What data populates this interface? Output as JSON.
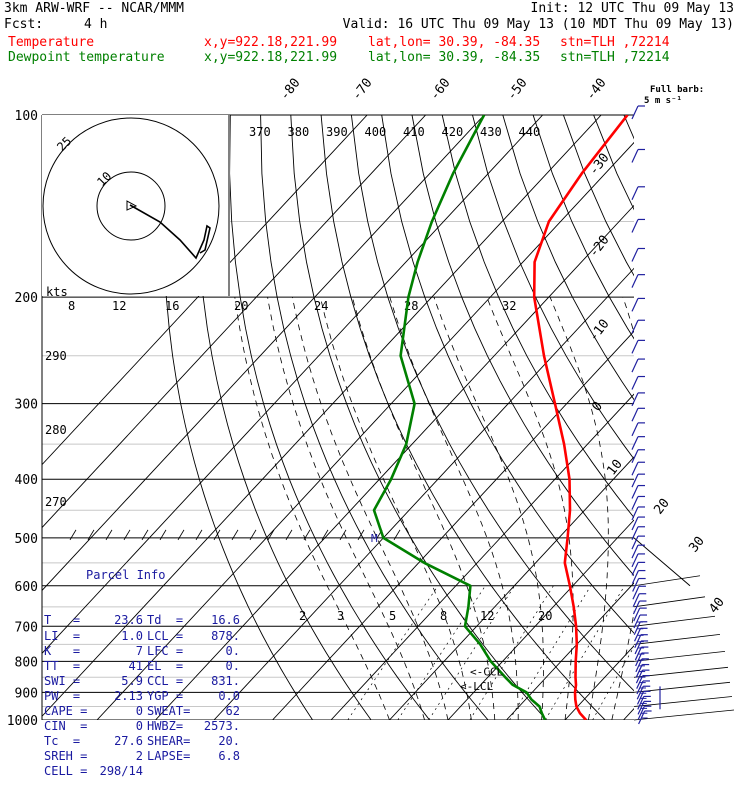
{
  "header": {
    "model": "3km ARW-WRF -- NCAR/MMM",
    "init": "Init: 12 UTC Thu 09 May 13",
    "fcst_label": "Fcst:",
    "fcst_value": "4 h",
    "valid": "Valid: 16 UTC Thu 09 May 13 (10 MDT Thu 09 May 13)",
    "temp_label": "Temperature",
    "dewp_label": "Dewpoint temperature",
    "xy": "x,y=922.18,221.99",
    "latlon": "lat,lon= 30.39, -84.35",
    "stn": "stn=TLH ,72214"
  },
  "colors": {
    "temperature": "#ff0000",
    "dewpoint": "#008000",
    "barbs": "#2020a0",
    "grid": "#000000"
  },
  "barb_legend": {
    "line1": "Full barb:",
    "line2": "5 m s⁻¹"
  },
  "parcel": {
    "title": "Parcel Info",
    "rows": [
      {
        "k1": "T   =",
        "v1": "23.6",
        "k2": "Td  =",
        "v2": "16.6"
      },
      {
        "k1": "LI  =",
        "v1": "1.0",
        "k2": "LCL =",
        "v2": "878."
      },
      {
        "k1": "K   =",
        "v1": "7",
        "k2": "LFC =",
        "v2": "0."
      },
      {
        "k1": "TT  =",
        "v1": "41",
        "k2": "EL  =",
        "v2": "0."
      },
      {
        "k1": "SWI =",
        "v1": "5.9",
        "k2": "CCL =",
        "v2": "831."
      },
      {
        "k1": "PW  =",
        "v1": "2.13",
        "k2": "YGP =",
        "v2": "0.0"
      },
      {
        "k1": "CAPE =",
        "v1": "0",
        "k2": "SWEAT=",
        "v2": "62"
      },
      {
        "k1": "CIN  =",
        "v1": "0",
        "k2": "HWBZ=",
        "v2": "2573."
      },
      {
        "k1": "Tc  =",
        "v1": "27.6",
        "k2": "SHEAR=",
        "v2": "20."
      },
      {
        "k1": "SREH =",
        "v1": "2",
        "k2": "LAPSE=",
        "v2": "6.8"
      },
      {
        "k1": "CELL =",
        "v1": "298/14",
        "k2": "",
        "v2": ""
      }
    ]
  },
  "chart_data": {
    "type": "line",
    "title": "",
    "ylabel": "",
    "pressure_levels": [
      100,
      200,
      300,
      400,
      500,
      600,
      700,
      800,
      900,
      1000
    ],
    "pressure_labels": [
      "100",
      "200",
      "300",
      "400",
      "500",
      "600",
      "700",
      "800",
      "900",
      "1000"
    ],
    "isotherm_labels": [
      "-80",
      "-70",
      "-60",
      "-50",
      "-40",
      "-30",
      "-20",
      "-10",
      "0",
      "10",
      "20",
      "30",
      "40"
    ],
    "theta_labels": [
      "370",
      "380",
      "390",
      "400",
      "410",
      "420",
      "430",
      "440"
    ],
    "theta_left_labels": [
      "290",
      "280",
      "270"
    ],
    "mixing_ratio_labels": [
      "2",
      "3",
      "5",
      "8",
      "12",
      "20"
    ],
    "hodograph": {
      "unit_label": "kts",
      "ring_labels": [
        "10",
        "25"
      ],
      "axis_labels": [
        "8",
        "12",
        "16",
        "20",
        "24",
        "28",
        "32"
      ]
    },
    "annotations": [
      "<-CCL",
      "<-LCL",
      "M"
    ],
    "series": [
      {
        "name": "Temperature",
        "color": "#ff0000",
        "points": [
          {
            "p": 1000,
            "t": 23.6
          },
          {
            "p": 975,
            "t": 21.5
          },
          {
            "p": 950,
            "t": 19.8
          },
          {
            "p": 925,
            "t": 18.5
          },
          {
            "p": 900,
            "t": 17.3
          },
          {
            "p": 875,
            "t": 16.3
          },
          {
            "p": 850,
            "t": 15.0
          },
          {
            "p": 800,
            "t": 12.5
          },
          {
            "p": 750,
            "t": 10.0
          },
          {
            "p": 700,
            "t": 7.0
          },
          {
            "p": 650,
            "t": 3.5
          },
          {
            "p": 600,
            "t": -0.5
          },
          {
            "p": 550,
            "t": -5.0
          },
          {
            "p": 500,
            "t": -8.5
          },
          {
            "p": 450,
            "t": -12.5
          },
          {
            "p": 400,
            "t": -17.5
          },
          {
            "p": 350,
            "t": -24.0
          },
          {
            "p": 300,
            "t": -32.0
          },
          {
            "p": 250,
            "t": -41.5
          },
          {
            "p": 200,
            "t": -52.5
          },
          {
            "p": 175,
            "t": -58.0
          },
          {
            "p": 150,
            "t": -62.0
          },
          {
            "p": 125,
            "t": -64.0
          },
          {
            "p": 100,
            "t": -65.5
          }
        ]
      },
      {
        "name": "Dewpoint temperature",
        "color": "#008000",
        "points": [
          {
            "p": 1000,
            "t": 16.6
          },
          {
            "p": 975,
            "t": 15.0
          },
          {
            "p": 950,
            "t": 13.5
          },
          {
            "p": 925,
            "t": 11.0
          },
          {
            "p": 900,
            "t": 9.0
          },
          {
            "p": 875,
            "t": 5.5
          },
          {
            "p": 850,
            "t": 3.0
          },
          {
            "p": 800,
            "t": -2.0
          },
          {
            "p": 750,
            "t": -6.5
          },
          {
            "p": 700,
            "t": -12.0
          },
          {
            "p": 650,
            "t": -14.5
          },
          {
            "p": 600,
            "t": -17.5
          },
          {
            "p": 550,
            "t": -29.0
          },
          {
            "p": 500,
            "t": -40.0
          },
          {
            "p": 450,
            "t": -46.0
          },
          {
            "p": 400,
            "t": -48.0
          },
          {
            "p": 350,
            "t": -51.0
          },
          {
            "p": 300,
            "t": -56.0
          },
          {
            "p": 250,
            "t": -66.0
          },
          {
            "p": 200,
            "t": -74.0
          },
          {
            "p": 175,
            "t": -78.0
          },
          {
            "p": 150,
            "t": -82.0
          },
          {
            "p": 125,
            "t": -86.0
          },
          {
            "p": 100,
            "t": -90.0
          }
        ]
      }
    ],
    "hodo_trace": [
      [
        130,
        205
      ],
      [
        160,
        222
      ],
      [
        180,
        240
      ],
      [
        196,
        258
      ],
      [
        204,
        240
      ],
      [
        207,
        226
      ],
      [
        210,
        228
      ],
      [
        205,
        250
      ],
      [
        200,
        253
      ]
    ]
  }
}
